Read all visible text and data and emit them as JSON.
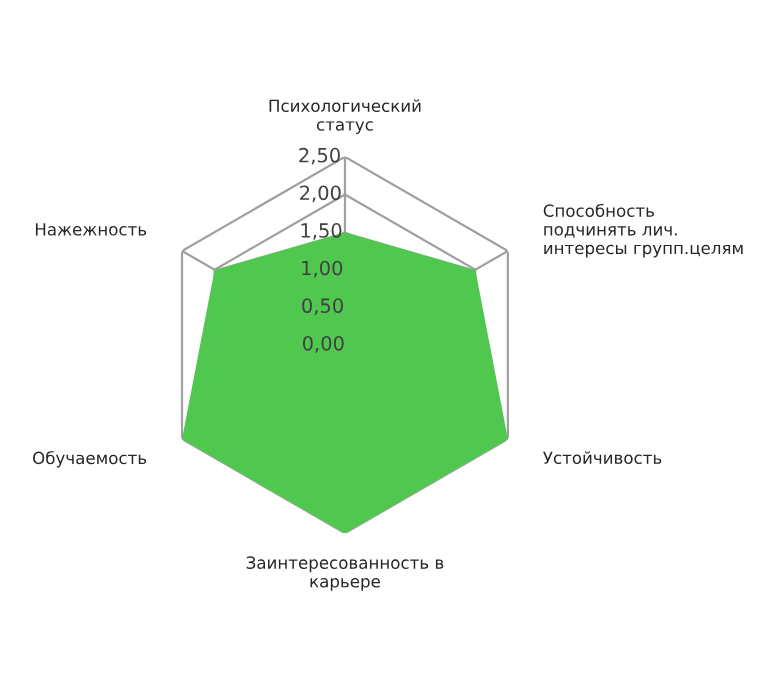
{
  "chart_data": {
    "type": "radar",
    "categories": [
      "Психологический\nстатус",
      "Способность\nподчинять лич.\nинтересы групп.целям",
      "Устойчивость",
      "Заинтересованность в\nкарьере",
      "Обучаемость",
      "Нажежность"
    ],
    "series": [
      {
        "color": "#50c850",
        "values": [
          1.5,
          2.0,
          2.5,
          2.5,
          2.5,
          2.0
        ]
      }
    ],
    "ylim": [
      0,
      2.5
    ],
    "yticks": [
      {
        "value": 0,
        "label": "0,00"
      },
      {
        "value": 0.5,
        "label": "0,50"
      },
      {
        "value": 1.0,
        "label": "1,00"
      },
      {
        "value": 1.5,
        "label": "1,50"
      },
      {
        "value": 2.0,
        "label": "2,00"
      },
      {
        "value": 2.5,
        "label": "2,50"
      }
    ],
    "grid": true
  }
}
